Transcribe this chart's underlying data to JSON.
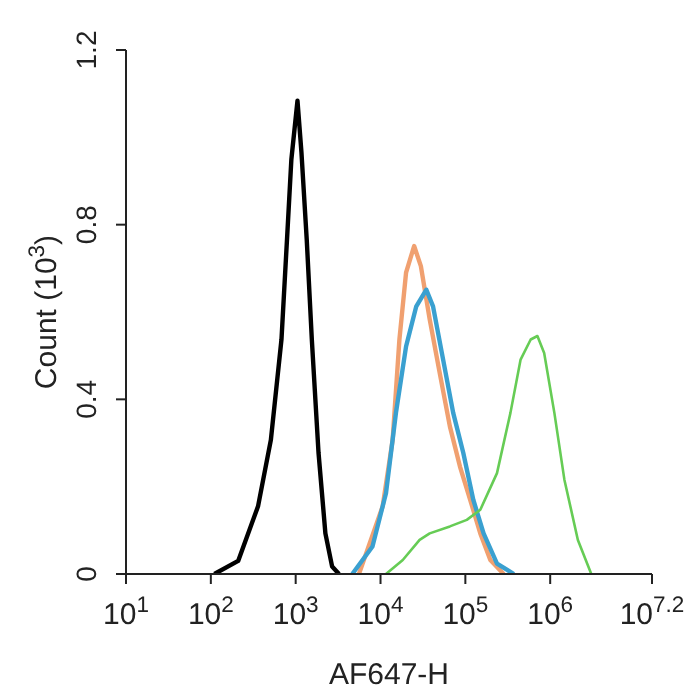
{
  "chart_data": {
    "type": "line",
    "xlabel": "AF647-H",
    "ylabel": "Count (10$^{3}$)",
    "log": "x",
    "xlim": [
      10,
      15848932
    ],
    "xticks": [
      {
        "value": 10,
        "label": "10$^{1}$"
      },
      {
        "value": 100,
        "label": "10$^{2}$"
      },
      {
        "value": 1000,
        "label": "10$^{3}$"
      },
      {
        "value": 10000,
        "label": "10$^{4}$"
      },
      {
        "value": 100000,
        "label": "10$^{5}$"
      },
      {
        "value": 1000000,
        "label": "10$^{6}$"
      },
      {
        "value": 15848932,
        "label": "10$^{7.2}$"
      }
    ],
    "ylim": [
      0,
      1.2
    ],
    "yticks": [
      0,
      0.4,
      0.8,
      1.2
    ],
    "grid": false,
    "legend": false,
    "marker": "none",
    "line_style": "solid",
    "series": [
      {
        "color": "#000000",
        "x": [
          110,
          210,
          360,
          510,
          680,
          790,
          890,
          1050,
          1170,
          1350,
          1550,
          1860,
          2240,
          2690,
          3240
        ],
        "values": [
          0,
          0.03,
          0.155,
          0.307,
          0.537,
          0.766,
          0.95,
          1.084,
          0.965,
          0.766,
          0.537,
          0.277,
          0.093,
          0.017,
          0
        ]
      },
      {
        "color": "#f0a070",
        "x": [
          5570,
          10600,
          13900,
          16700,
          20000,
          24900,
          29900,
          38000,
          49900,
          65700,
          86400,
          114000,
          150000,
          197000,
          283000
        ],
        "values": [
          0,
          0.155,
          0.307,
          0.537,
          0.69,
          0.751,
          0.705,
          0.583,
          0.46,
          0.338,
          0.246,
          0.17,
          0.093,
          0.032,
          0
        ]
      },
      {
        "color": "#3aa0d0",
        "x": [
          4650,
          8040,
          11600,
          15200,
          20000,
          26400,
          34700,
          41600,
          54700,
          71900,
          94600,
          124000,
          164000,
          236000,
          373000
        ],
        "values": [
          0,
          0.063,
          0.185,
          0.369,
          0.521,
          0.613,
          0.651,
          0.613,
          0.491,
          0.369,
          0.277,
          0.17,
          0.093,
          0.024,
          0
        ]
      },
      {
        "color": "#66cc55",
        "x": [
          11600,
          18300,
          28900,
          38000,
          65700,
          104000,
          150000,
          236000,
          340000,
          448000,
          589000,
          707000,
          849000,
          1120000,
          1470000,
          2120000,
          3050000
        ],
        "values": [
          0,
          0.032,
          0.078,
          0.093,
          0.109,
          0.124,
          0.147,
          0.231,
          0.369,
          0.491,
          0.537,
          0.545,
          0.506,
          0.369,
          0.216,
          0.078,
          0
        ]
      }
    ]
  }
}
